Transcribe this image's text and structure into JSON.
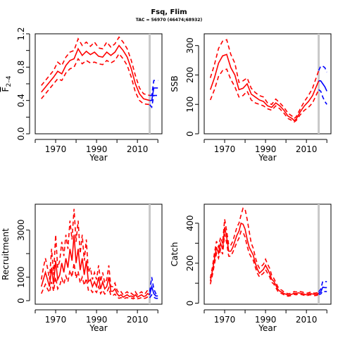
{
  "header": {
    "title": "Fsq, Flim",
    "subtitle": "TAC = 56970 (46474;68932)"
  },
  "colors": {
    "history": "#ff0000",
    "forecast": "#0000ff",
    "divider": "#c8c8c8"
  },
  "chart_data": [
    {
      "type": "line",
      "xlabel": "Year",
      "ylabel": "F̄2–4",
      "ylabel_main": "F",
      "ylabel_sub": "2–4",
      "xticks": [
        1970,
        1990,
        2010
      ],
      "yticks": [
        "0.0",
        "0.4",
        "0.8",
        "1.2"
      ],
      "ylim": [
        0,
        1.2
      ],
      "divider_x": 2016,
      "history": {
        "x": [
          1963,
          1965,
          1967,
          1969,
          1971,
          1973,
          1975,
          1977,
          1979,
          1981,
          1983,
          1985,
          1987,
          1989,
          1991,
          1993,
          1995,
          1997,
          1999,
          2001,
          2003,
          2005,
          2007,
          2009,
          2011,
          2013,
          2016
        ],
        "mid": [
          0.5,
          0.56,
          0.62,
          0.68,
          0.75,
          0.72,
          0.82,
          0.88,
          0.9,
          1.02,
          0.94,
          0.99,
          0.95,
          0.98,
          0.93,
          0.92,
          0.98,
          0.94,
          0.98,
          1.06,
          1.0,
          0.92,
          0.78,
          0.6,
          0.48,
          0.42,
          0.4
        ],
        "lo": [
          0.42,
          0.48,
          0.54,
          0.6,
          0.66,
          0.64,
          0.73,
          0.78,
          0.8,
          0.9,
          0.84,
          0.88,
          0.85,
          0.86,
          0.84,
          0.83,
          0.88,
          0.85,
          0.88,
          0.96,
          0.9,
          0.82,
          0.68,
          0.5,
          0.4,
          0.36,
          0.35
        ],
        "hi": [
          0.58,
          0.64,
          0.7,
          0.76,
          0.86,
          0.82,
          0.92,
          0.98,
          1.0,
          1.14,
          1.06,
          1.1,
          1.05,
          1.1,
          1.03,
          1.02,
          1.1,
          1.04,
          1.08,
          1.16,
          1.1,
          1.02,
          0.88,
          0.7,
          0.55,
          0.48,
          0.46
        ]
      },
      "forecast": {
        "x": [
          2016,
          2017,
          2018,
          2019,
          2020
        ],
        "mid": [
          0.4,
          0.4,
          0.55,
          0.55,
          0.55
        ],
        "lo": [
          0.35,
          0.32,
          0.46,
          0.46,
          0.46
        ],
        "hi": [
          0.46,
          0.46,
          0.64,
          0.64,
          0.64
        ]
      }
    },
    {
      "type": "line",
      "xlabel": "Year",
      "ylabel": "SSB",
      "xticks": [
        1970,
        1990,
        2010
      ],
      "yticks": [
        "0",
        "100",
        "200",
        "300"
      ],
      "ylim": [
        0,
        340
      ],
      "divider_x": 2016,
      "history": {
        "x": [
          1963,
          1965,
          1967,
          1969,
          1971,
          1973,
          1975,
          1977,
          1979,
          1981,
          1983,
          1985,
          1987,
          1989,
          1991,
          1993,
          1995,
          1997,
          1999,
          2001,
          2003,
          2004,
          2005,
          2007,
          2009,
          2011,
          2013,
          2016
        ],
        "mid": [
          150,
          190,
          240,
          265,
          270,
          225,
          200,
          150,
          155,
          170,
          135,
          125,
          115,
          110,
          95,
          90,
          105,
          95,
          80,
          60,
          52,
          45,
          50,
          75,
          95,
          110,
          130,
          180
        ],
        "lo": [
          115,
          150,
          195,
          215,
          220,
          185,
          160,
          125,
          130,
          145,
          115,
          105,
          100,
          95,
          85,
          80,
          95,
          85,
          70,
          52,
          45,
          40,
          45,
          65,
          80,
          90,
          105,
          150
        ],
        "hi": [
          190,
          235,
          290,
          315,
          320,
          270,
          240,
          175,
          180,
          190,
          155,
          140,
          130,
          125,
          105,
          100,
          118,
          105,
          90,
          70,
          60,
          52,
          58,
          85,
          110,
          130,
          155,
          215
        ]
      },
      "forecast": {
        "x": [
          2016,
          2017,
          2018,
          2019,
          2020
        ],
        "mid": [
          180,
          180,
          170,
          160,
          145
        ],
        "lo": [
          150,
          145,
          125,
          110,
          100
        ],
        "hi": [
          215,
          230,
          230,
          225,
          210
        ]
      }
    },
    {
      "type": "line",
      "xlabel": "Year",
      "ylabel": "Recruitment",
      "xticks": [
        1970,
        1990,
        2010
      ],
      "yticks": [
        "0",
        "1000",
        "3000"
      ],
      "ytick_values": [
        0,
        1000,
        3000
      ],
      "ylim": [
        -150,
        4100
      ],
      "divider_x": 2016,
      "history": {
        "x": [
          1963,
          1964,
          1965,
          1966,
          1967,
          1968,
          1969,
          1970,
          1971,
          1972,
          1973,
          1974,
          1975,
          1976,
          1977,
          1978,
          1979,
          1980,
          1981,
          1982,
          1983,
          1984,
          1985,
          1986,
          1987,
          1988,
          1989,
          1990,
          1991,
          1992,
          1993,
          1994,
          1995,
          1996,
          1997,
          1998,
          1999,
          2000,
          2001,
          2002,
          2003,
          2004,
          2005,
          2006,
          2007,
          2008,
          2009,
          2010,
          2011,
          2012,
          2013,
          2014,
          2015,
          2016
        ],
        "mid": [
          600,
          900,
          1200,
          900,
          600,
          1400,
          700,
          1700,
          900,
          1100,
          1600,
          1200,
          1800,
          1400,
          2200,
          1700,
          2800,
          1600,
          2200,
          1300,
          1800,
          1100,
          1700,
          800,
          900,
          600,
          800,
          600,
          1000,
          500,
          800,
          500,
          600,
          1000,
          400,
          400,
          500,
          300,
          200,
          250,
          150,
          200,
          250,
          180,
          200,
          150,
          250,
          150,
          200,
          250,
          180,
          200,
          300,
          250
        ],
        "lo": [
          300,
          500,
          700,
          500,
          350,
          800,
          400,
          1000,
          500,
          650,
          950,
          700,
          1050,
          800,
          1300,
          1000,
          1600,
          950,
          1250,
          750,
          1000,
          650,
          950,
          450,
          500,
          350,
          450,
          350,
          600,
          300,
          450,
          280,
          350,
          550,
          220,
          220,
          280,
          160,
          100,
          130,
          80,
          110,
          130,
          90,
          110,
          80,
          130,
          80,
          100,
          130,
          90,
          110,
          160,
          120
        ],
        "hi": [
          900,
          1400,
          1800,
          1400,
          900,
          2200,
          1100,
          2800,
          1400,
          1700,
          2500,
          1900,
          2800,
          2200,
          3400,
          2600,
          3900,
          2500,
          3400,
          2000,
          2800,
          1700,
          2600,
          1200,
          1400,
          900,
          1200,
          900,
          1500,
          800,
          1200,
          750,
          900,
          1500,
          600,
          600,
          750,
          450,
          320,
          380,
          250,
          320,
          380,
          280,
          320,
          240,
          380,
          240,
          320,
          380,
          280,
          320,
          450,
          380
        ]
      },
      "forecast": {
        "x": [
          2016,
          2017,
          2018,
          2019,
          2020
        ],
        "mid": [
          250,
          600,
          300,
          200,
          200
        ],
        "lo": [
          120,
          250,
          150,
          100,
          100
        ],
        "hi": [
          380,
          1000,
          500,
          300,
          300
        ]
      }
    },
    {
      "type": "line",
      "xlabel": "Year",
      "ylabel": "Catch",
      "xticks": [
        1970,
        1990,
        2010
      ],
      "yticks": [
        "0",
        "200",
        "400"
      ],
      "ylim": [
        -5,
        495
      ],
      "divider_x": 2016,
      "history": {
        "x": [
          1963,
          1964,
          1965,
          1966,
          1967,
          1968,
          1969,
          1970,
          1971,
          1972,
          1973,
          1974,
          1975,
          1976,
          1977,
          1978,
          1979,
          1980,
          1981,
          1982,
          1983,
          1984,
          1985,
          1986,
          1987,
          1988,
          1989,
          1990,
          1991,
          1992,
          1993,
          1994,
          1995,
          1996,
          1997,
          1998,
          1999,
          2000,
          2001,
          2002,
          2003,
          2004,
          2005,
          2006,
          2007,
          2008,
          2009,
          2010,
          2011,
          2012,
          2013,
          2014,
          2015,
          2016
        ],
        "mid": [
          110,
          160,
          220,
          280,
          250,
          300,
          270,
          380,
          330,
          260,
          260,
          280,
          310,
          340,
          360,
          400,
          395,
          370,
          320,
          280,
          260,
          240,
          200,
          170,
          150,
          160,
          170,
          190,
          170,
          150,
          120,
          110,
          90,
          70,
          60,
          55,
          48,
          45,
          40,
          42,
          45,
          50,
          48,
          52,
          50,
          48,
          45,
          42,
          45,
          48,
          46,
          44,
          45,
          50
        ],
        "lo": [
          95,
          140,
          195,
          250,
          225,
          270,
          245,
          345,
          300,
          235,
          235,
          255,
          280,
          305,
          325,
          360,
          355,
          330,
          285,
          250,
          230,
          215,
          180,
          150,
          132,
          142,
          150,
          168,
          150,
          132,
          105,
          96,
          78,
          60,
          52,
          48,
          42,
          39,
          35,
          37,
          40,
          44,
          42,
          46,
          44,
          42,
          39,
          37,
          40,
          42,
          40,
          38,
          39,
          44
        ],
        "hi": [
          125,
          180,
          250,
          310,
          280,
          330,
          300,
          420,
          360,
          290,
          290,
          310,
          345,
          380,
          400,
          440,
          475,
          470,
          420,
          360,
          300,
          275,
          230,
          195,
          175,
          185,
          195,
          220,
          195,
          175,
          140,
          125,
          105,
          82,
          70,
          65,
          56,
          52,
          47,
          49,
          52,
          58,
          56,
          60,
          58,
          56,
          52,
          49,
          52,
          55,
          53,
          50,
          52,
          57
        ]
      },
      "forecast": {
        "x": [
          2016,
          2017,
          2018,
          2019,
          2020
        ],
        "mid": [
          50,
          56,
          80,
          78,
          78
        ],
        "lo": [
          44,
          46,
          60,
          58,
          58
        ],
        "hi": [
          57,
          70,
          110,
          108,
          108
        ]
      }
    }
  ]
}
